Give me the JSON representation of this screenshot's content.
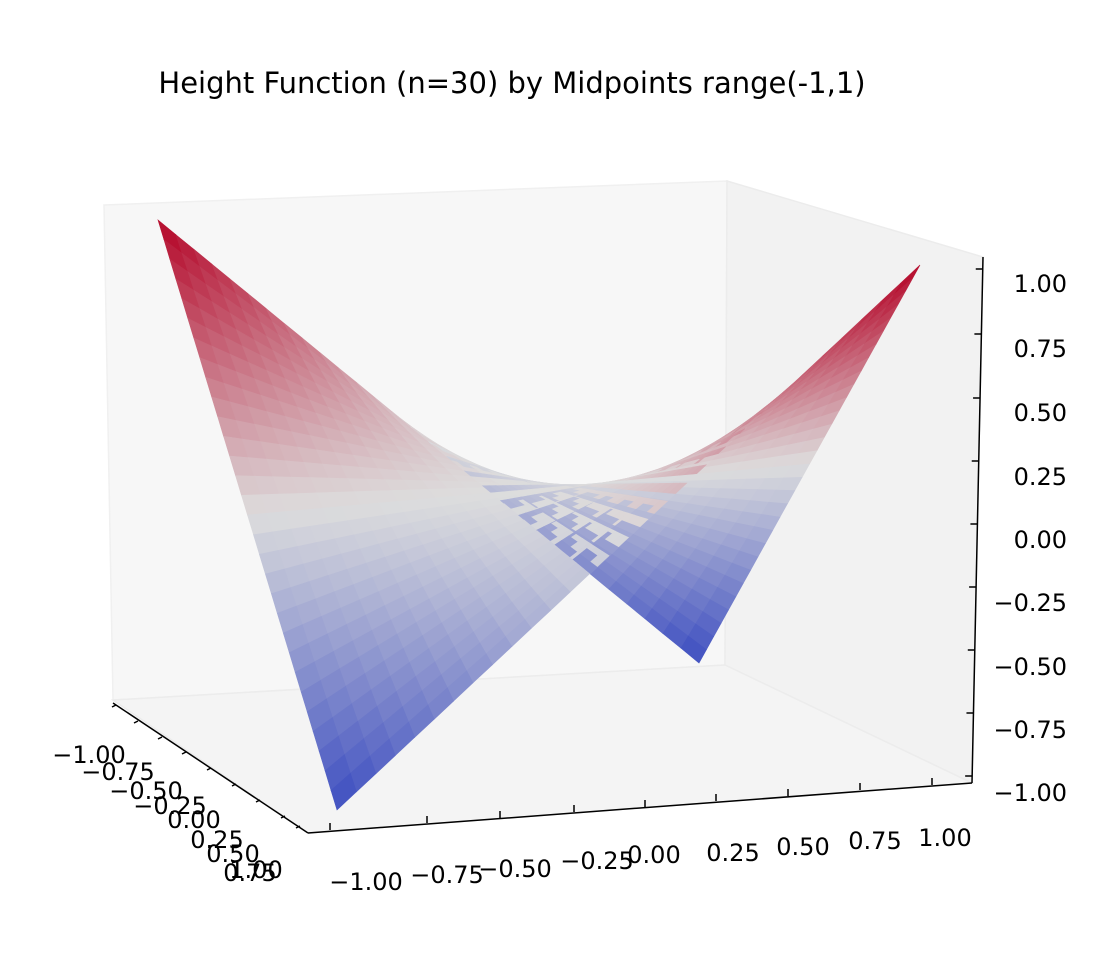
{
  "chart_data": {
    "type": "surface",
    "title": "Height Function (n=30) by Midpoints range(-1,1)",
    "xlabel": "",
    "ylabel": "",
    "zlabel": "",
    "x_ticks": [
      "−1.00",
      "−0.75",
      "−0.50",
      "−0.25",
      "0.00",
      "0.25",
      "0.50",
      "0.75",
      "1.00"
    ],
    "y_ticks": [
      "−1.00",
      "−0.75",
      "−0.50",
      "−0.25",
      "0.00",
      "0.25",
      "0.50",
      "0.75",
      "1.00"
    ],
    "z_ticks": [
      "−1.00",
      "−0.75",
      "−0.50",
      "−0.25",
      "0.00",
      "0.25",
      "0.50",
      "0.75",
      "1.00"
    ],
    "xlim": [
      -1,
      1
    ],
    "ylim": [
      -1,
      1
    ],
    "zlim": [
      -1,
      1
    ],
    "n": 30,
    "function": "z = x*y",
    "corners": [
      {
        "x": -1,
        "y": -1,
        "z": 1
      },
      {
        "x": 1,
        "y": 1,
        "z": 1
      },
      {
        "x": -1,
        "y": 1,
        "z": -1
      },
      {
        "x": 1,
        "y": -1,
        "z": -1
      }
    ],
    "colormap": "coolwarm",
    "colors": {
      "low": "#3b4cc0",
      "mid": "#dddddd",
      "high": "#b40426"
    }
  }
}
